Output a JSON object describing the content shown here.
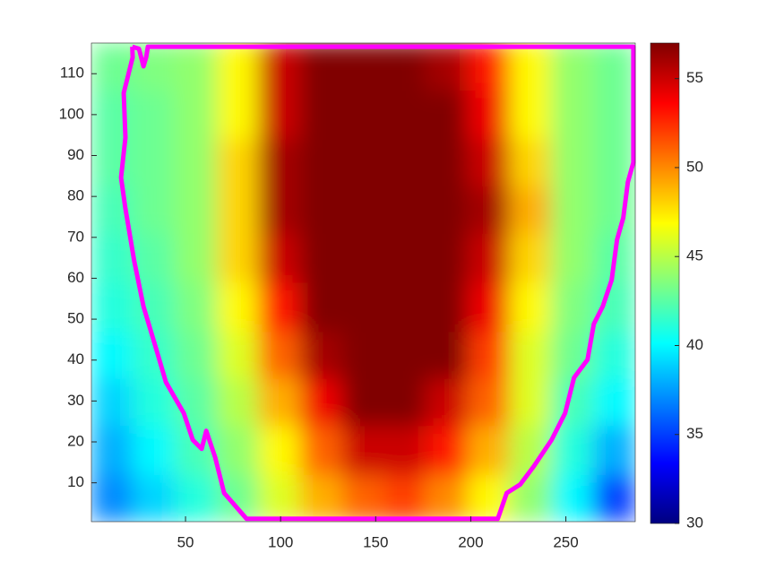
{
  "chart_data": {
    "type": "heatmap",
    "colormap": "jet",
    "x": [
      11.5,
      33.5,
      55.5,
      77.5,
      99.5,
      121.5,
      143.5,
      165.5,
      187.5,
      209.5,
      231.5,
      253.5,
      275.5
    ],
    "y": [
      6,
      18,
      30,
      41,
      53,
      65,
      77,
      88,
      100,
      112
    ],
    "z": [
      [
        37,
        39,
        41,
        43,
        46,
        49,
        51,
        52,
        50,
        47,
        44,
        40,
        35
      ],
      [
        38,
        40,
        42,
        44,
        47,
        51,
        55,
        55,
        53,
        49,
        45,
        41,
        38
      ],
      [
        39,
        41,
        42.5,
        45,
        49,
        54,
        57,
        57,
        55,
        51,
        46,
        42,
        40
      ],
      [
        40,
        41.5,
        43,
        46,
        51,
        56,
        57,
        57,
        57,
        52,
        46,
        43,
        41
      ],
      [
        41,
        42,
        43.5,
        47,
        53,
        57,
        57,
        57,
        57,
        54,
        47,
        43.5,
        42
      ],
      [
        41.5,
        42.5,
        44,
        48,
        55,
        57,
        57,
        57,
        57,
        55,
        48,
        44,
        42.5
      ],
      [
        42,
        43,
        44,
        48,
        56,
        57,
        57,
        57,
        57,
        56,
        49,
        44,
        43
      ],
      [
        42.5,
        43,
        44,
        48,
        56,
        57,
        57,
        57,
        57,
        55,
        48,
        44,
        43
      ],
      [
        42.5,
        43,
        44,
        47,
        55,
        57,
        57,
        57,
        57,
        54,
        47,
        44,
        43
      ],
      [
        43,
        43.5,
        44,
        47,
        55,
        57,
        57,
        57,
        56,
        53,
        47,
        44,
        43
      ]
    ],
    "xlim": [
      0.5,
      286.5
    ],
    "ylim": [
      0.5,
      117.5
    ],
    "xticks": [
      50,
      100,
      150,
      200,
      250
    ],
    "yticks": [
      10,
      20,
      30,
      40,
      50,
      60,
      70,
      80,
      90,
      100,
      110
    ],
    "zlim": [
      30,
      57
    ],
    "colorbar_ticks": [
      30,
      35,
      40,
      45,
      50,
      55
    ],
    "contour": {
      "color": "#ff00ff",
      "x": [
        22,
        25.5,
        27.9,
        29.3,
        30.2,
        285.5,
        285.5,
        282.6,
        280.2,
        276.9,
        274.1,
        269.4,
        264.7,
        261.4,
        254.3,
        249.6,
        242.5,
        233.1,
        226,
        218.9,
        214.2,
        82.1,
        70.3,
        65.6,
        60.9,
        58.5,
        53.8,
        49.1,
        39.7,
        34.9,
        27.9,
        23.1,
        18.4,
        16.1,
        18.4,
        17.5,
        22.2,
        22
      ],
      "y": [
        116.6,
        116.1,
        111.8,
        114,
        116.6,
        116.6,
        88.3,
        83.5,
        74.8,
        69.4,
        59.6,
        53.1,
        48.8,
        40.1,
        35.7,
        27,
        20.5,
        14,
        9.6,
        7.5,
        1.2,
        1.2,
        7.5,
        16.2,
        22.7,
        18.3,
        20.5,
        27,
        34.6,
        42.2,
        53.1,
        64,
        77,
        84.6,
        94.4,
        105.3,
        114,
        116.6
      ]
    }
  }
}
